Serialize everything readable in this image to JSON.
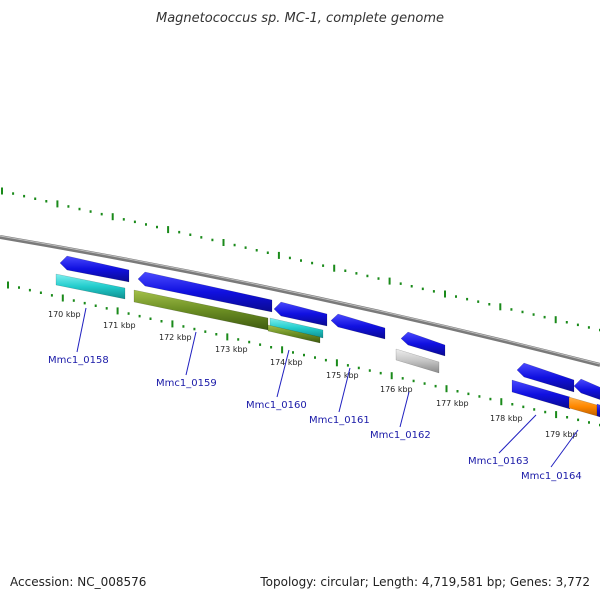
{
  "title": "Magnetococcus sp. MC-1, complete genome",
  "footer": {
    "accession": "Accession: NC_008576",
    "summary": "Topology: circular; Length: 4,719,581 bp; Genes: 3,772"
  },
  "scale_labels": [
    "170 kbp",
    "171 kbp",
    "172 kbp",
    "173 kbp",
    "174 kbp",
    "175 kbp",
    "176 kbp",
    "177 kbp",
    "178 kbp",
    "179 kbp"
  ],
  "gene_labels": [
    "Mmc1_0158",
    "Mmc1_0159",
    "Mmc1_0160",
    "Mmc1_0161",
    "Mmc1_0162",
    "Mmc1_0163",
    "Mmc1_0164"
  ],
  "colors": {
    "backbone": "#888888",
    "forward_cds": "#1010e0",
    "rna": "#22cccc",
    "olive": "#6b8e23",
    "gray_feature": "#bbbbbb",
    "orange": "#ff8800",
    "tick": "#1a8a1a",
    "label_line": "#2020c0"
  }
}
